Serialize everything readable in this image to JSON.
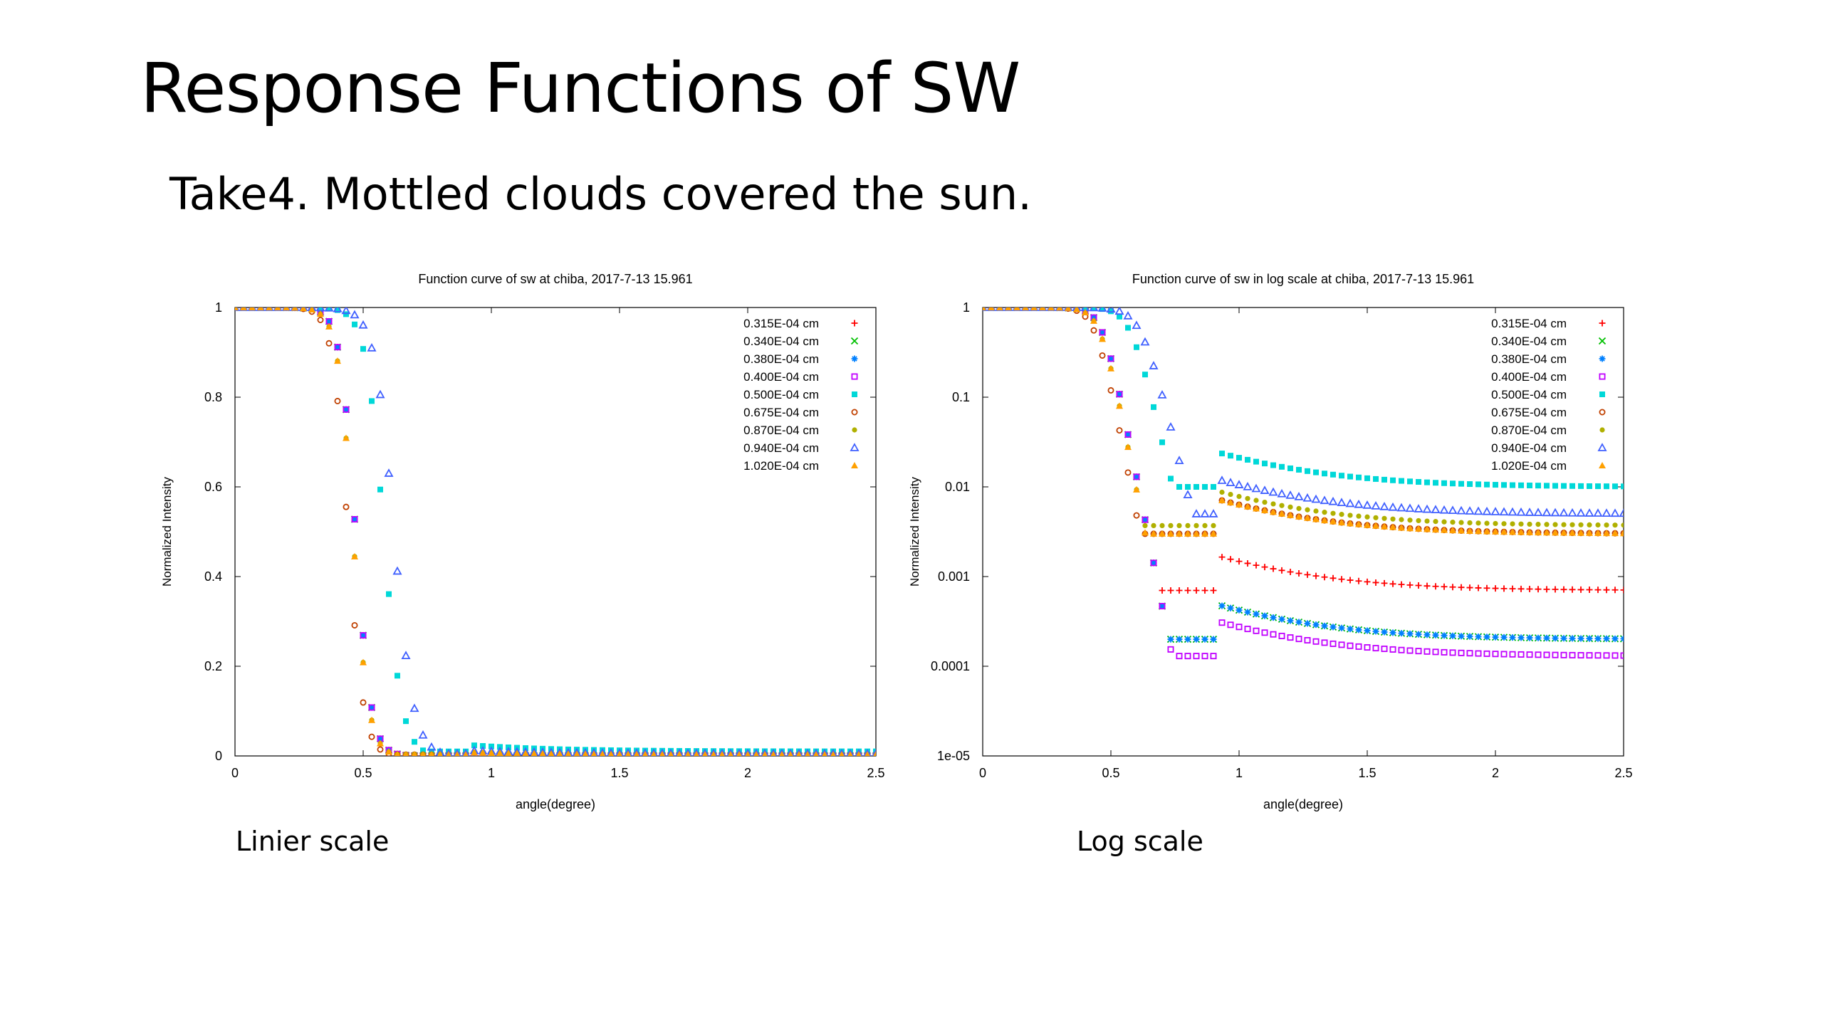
{
  "slide": {
    "title": "Response Functions of SW",
    "subtitle": "Take4. Mottled clouds covered the sun.",
    "caption_left": "Linier scale",
    "caption_right": "Log scale"
  },
  "series_colors": [
    "#ff0000",
    "#00c000",
    "#0080ff",
    "#c000ff",
    "#00d8d8",
    "#c04000",
    "#b0b000",
    "#4060ff",
    "#ffa000"
  ],
  "series_markers": [
    "plus",
    "cross",
    "star",
    "open-square",
    "filled-square",
    "open-circle",
    "filled-circle",
    "open-triangle",
    "filled-triangle"
  ],
  "chart_data": [
    {
      "type": "scatter",
      "title": "Function curve of sw at chiba, 2017-7-13 15.961",
      "xlabel": "angle(degree)",
      "ylabel": "Normalized Intensity",
      "xlim": [
        0,
        2.5
      ],
      "ylim": [
        0,
        1
      ],
      "yscale": "linear",
      "xticks": [
        "0",
        "0.5",
        "1",
        "1.5",
        "2",
        "2.5"
      ],
      "yticks": [
        "0",
        "0.2",
        "0.4",
        "0.6",
        "0.8",
        "1"
      ],
      "grid": false,
      "legend_position": "top-right",
      "series": [
        {
          "name": "0.315E-04 cm",
          "shape": {
            "half_angle": 0.47,
            "width": 0.12,
            "floor": 0.0007
          }
        },
        {
          "name": "0.340E-04 cm",
          "shape": {
            "half_angle": 0.47,
            "width": 0.12,
            "floor": 0.0002
          }
        },
        {
          "name": "0.380E-04 cm",
          "shape": {
            "half_angle": 0.47,
            "width": 0.12,
            "floor": 0.0002
          }
        },
        {
          "name": "0.400E-04 cm",
          "shape": {
            "half_angle": 0.47,
            "width": 0.12,
            "floor": 0.00013
          }
        },
        {
          "name": "0.500E-04 cm",
          "shape": {
            "half_angle": 0.58,
            "width": 0.14,
            "floor": 0.01
          }
        },
        {
          "name": "0.675E-04 cm",
          "shape": {
            "half_angle": 0.44,
            "width": 0.12,
            "floor": 0.003
          }
        },
        {
          "name": "0.870E-04 cm",
          "shape": {
            "half_angle": 0.46,
            "width": 0.12,
            "floor": 0.0037
          }
        },
        {
          "name": "0.940E-04 cm",
          "shape": {
            "half_angle": 0.62,
            "width": 0.15,
            "floor": 0.005
          }
        },
        {
          "name": "1.020E-04 cm",
          "shape": {
            "half_angle": 0.46,
            "width": 0.12,
            "floor": 0.003
          }
        }
      ]
    },
    {
      "type": "scatter",
      "title": "Function curve of sw in log scale at chiba, 2017-7-13 15.961",
      "xlabel": "angle(degree)",
      "ylabel": "Normalized Intensity",
      "xlim": [
        0,
        2.5
      ],
      "ylim": [
        1e-05,
        1
      ],
      "yscale": "log",
      "xticks": [
        "0",
        "0.5",
        "1",
        "1.5",
        "2",
        "2.5"
      ],
      "yticks": [
        "1e-05",
        "0.0001",
        "0.001",
        "0.01",
        "0.1",
        "1"
      ],
      "grid": false,
      "legend_position": "top-right",
      "series": [
        {
          "name": "0.315E-04 cm",
          "shape": {
            "half_angle": 0.47,
            "width": 0.12,
            "floor": 0.0007
          }
        },
        {
          "name": "0.340E-04 cm",
          "shape": {
            "half_angle": 0.47,
            "width": 0.12,
            "floor": 0.0002
          }
        },
        {
          "name": "0.380E-04 cm",
          "shape": {
            "half_angle": 0.47,
            "width": 0.12,
            "floor": 0.0002
          }
        },
        {
          "name": "0.400E-04 cm",
          "shape": {
            "half_angle": 0.47,
            "width": 0.12,
            "floor": 0.00013
          }
        },
        {
          "name": "0.500E-04 cm",
          "shape": {
            "half_angle": 0.58,
            "width": 0.14,
            "floor": 0.01
          }
        },
        {
          "name": "0.675E-04 cm",
          "shape": {
            "half_angle": 0.44,
            "width": 0.12,
            "floor": 0.003
          }
        },
        {
          "name": "0.870E-04 cm",
          "shape": {
            "half_angle": 0.46,
            "width": 0.12,
            "floor": 0.0037
          }
        },
        {
          "name": "0.940E-04 cm",
          "shape": {
            "half_angle": 0.62,
            "width": 0.15,
            "floor": 0.005
          }
        },
        {
          "name": "1.020E-04 cm",
          "shape": {
            "half_angle": 0.46,
            "width": 0.12,
            "floor": 0.003
          }
        }
      ]
    }
  ]
}
